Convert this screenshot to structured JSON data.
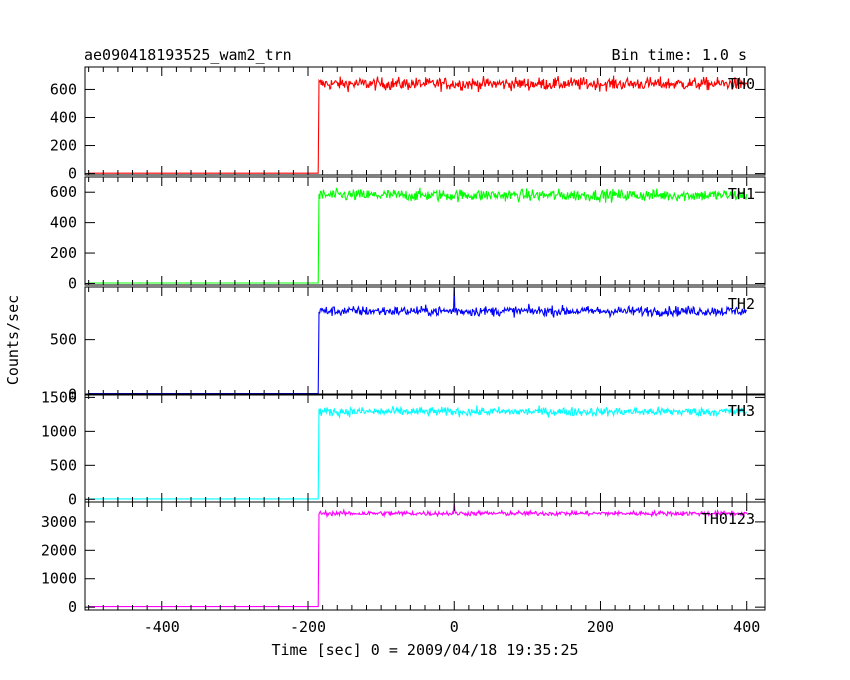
{
  "header": {
    "title": "ae090418193525_wam2_trn",
    "bin_time": "Bin time: 1.0 s"
  },
  "axes": {
    "xlabel": "Time [sec] 0 = 2009/04/18 19:35:25",
    "ylabel": "Counts/sec",
    "x_ticks": [
      "-400",
      "-200",
      "0",
      "200",
      "400"
    ]
  },
  "chart_data": [
    {
      "type": "line",
      "series_name": "TH0",
      "color": "#ff0000",
      "x_range": [
        -505,
        425
      ],
      "ylim": [
        -10,
        760
      ],
      "y_ticks": [
        0,
        200,
        400,
        600
      ],
      "y_tick_labels": [
        "0",
        "200",
        "400",
        "600"
      ],
      "baseline": 3,
      "plateau": 640,
      "noise": 38,
      "trigger_x": -185,
      "spike": null,
      "x": [
        -500,
        -200,
        -186,
        -185,
        -180,
        -100,
        0,
        100,
        200,
        300,
        400
      ],
      "y": [
        3,
        3,
        3,
        640,
        655,
        640,
        635,
        640,
        640,
        645,
        640
      ]
    },
    {
      "type": "line",
      "series_name": "TH1",
      "color": "#00ff00",
      "x_range": [
        -505,
        425
      ],
      "ylim": [
        -10,
        700
      ],
      "y_ticks": [
        0,
        200,
        400,
        600
      ],
      "y_tick_labels": [
        "0",
        "200",
        "400",
        "600"
      ],
      "baseline": 3,
      "plateau": 580,
      "noise": 33,
      "trigger_x": -185,
      "spike": null,
      "x": [
        -500,
        -200,
        -186,
        -185,
        -180,
        -100,
        0,
        100,
        200,
        300,
        400
      ],
      "y": [
        3,
        3,
        3,
        580,
        590,
        575,
        575,
        580,
        580,
        585,
        580
      ]
    },
    {
      "type": "line",
      "series_name": "TH2",
      "color": "#0000ff",
      "x_range": [
        -505,
        425
      ],
      "ylim": [
        -5,
        980
      ],
      "y_ticks": [
        0,
        500
      ],
      "y_tick_labels": [
        "0",
        "500"
      ],
      "baseline": 8,
      "plateau": 760,
      "noise": 38,
      "trigger_x": -185,
      "spike": {
        "x": 0,
        "y": 1100
      },
      "x": [
        -500,
        -200,
        -186,
        -185,
        -180,
        -100,
        0,
        100,
        200,
        300,
        400
      ],
      "y": [
        8,
        8,
        8,
        760,
        770,
        765,
        760,
        765,
        760,
        765,
        760
      ]
    },
    {
      "type": "line",
      "series_name": "TH3",
      "color": "#00ffff",
      "x_range": [
        -505,
        425
      ],
      "ylim": [
        -40,
        1550
      ],
      "y_ticks": [
        0,
        500,
        1000,
        1500
      ],
      "y_tick_labels": [
        "0",
        "500",
        "1000",
        "1500"
      ],
      "baseline": 5,
      "plateau": 1290,
      "noise": 55,
      "trigger_x": -185,
      "spike": null,
      "x": [
        -500,
        -200,
        -186,
        -185,
        -180,
        -100,
        0,
        100,
        200,
        300,
        400
      ],
      "y": [
        5,
        5,
        5,
        1290,
        1300,
        1280,
        1285,
        1290,
        1300,
        1300,
        1290
      ]
    },
    {
      "type": "line",
      "series_name": "TH0123",
      "color": "#ff00ff",
      "x_range": [
        -505,
        425
      ],
      "ylim": [
        -100,
        3700
      ],
      "y_ticks": [
        0,
        1000,
        2000,
        3000
      ],
      "y_tick_labels": [
        "0",
        "1000",
        "2000",
        "3000"
      ],
      "baseline": 20,
      "plateau": 3300,
      "noise": 70,
      "trigger_x": -185,
      "spike": {
        "x": 0,
        "y": 3650
      },
      "x": [
        -500,
        -200,
        -186,
        -185,
        -180,
        -100,
        0,
        100,
        200,
        300,
        400
      ],
      "y": [
        20,
        20,
        20,
        3300,
        3320,
        3290,
        3300,
        3310,
        3320,
        3330,
        3300
      ]
    }
  ]
}
